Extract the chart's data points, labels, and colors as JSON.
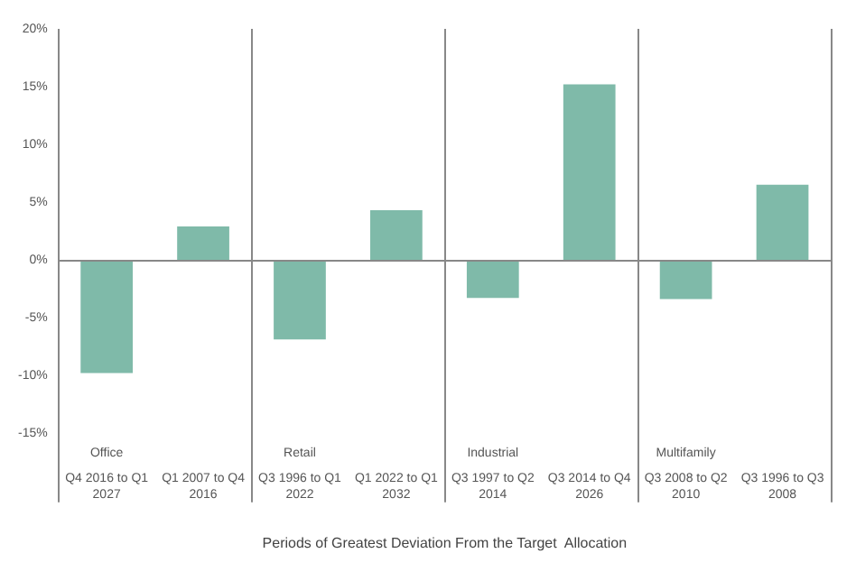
{
  "chart_data": {
    "type": "bar",
    "xlabel": "Periods of Greatest Deviation From the Target  Allocation",
    "categories": [
      "Q4 2016 to Q1 2027",
      "Q1 2007 to Q4 2016",
      "Q3 1996 to Q1 2022",
      "Q1 2022 to Q1 2032",
      "Q3 1997 to Q2 2014",
      "Q3 2014 to Q4 2026",
      "Q3 2008 to Q2 2010",
      "Q3 1996 to Q3 2008"
    ],
    "values": [
      -9.8,
      2.9,
      -6.9,
      4.3,
      -3.3,
      15.2,
      -3.4,
      6.5
    ],
    "color": "#7fbaa9",
    "ylim": [
      -21,
      20
    ],
    "yticks": [
      {
        "value": -15,
        "label": "-15%"
      },
      {
        "value": -10,
        "label": "-10%"
      },
      {
        "value": -5,
        "label": "-5%"
      },
      {
        "value": 0,
        "label": "0%"
      },
      {
        "value": 5,
        "label": "5%"
      },
      {
        "value": 10,
        "label": "10%"
      },
      {
        "value": 15,
        "label": "15%"
      },
      {
        "value": 20,
        "label": "20%"
      }
    ],
    "annotations": [
      "Office",
      "Retail",
      "Industrial",
      "Multifamily"
    ],
    "legend": false
  }
}
